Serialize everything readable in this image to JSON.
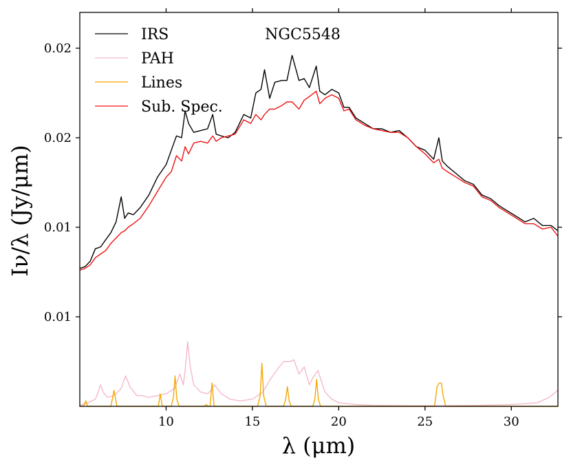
{
  "chart_data": {
    "type": "line",
    "title": "NGC5548",
    "xlabel": "λ (μm)",
    "ylabel": "Iν/λ (Jy/μm)",
    "xlim": [
      5.0,
      32.7
    ],
    "ylim": [
      0.0,
      0.022
    ],
    "xticks": [
      10,
      15,
      20,
      25,
      30
    ],
    "xtick_labels": [
      "10",
      "15",
      "20",
      "25",
      "30"
    ],
    "yticks": [
      0.005,
      0.01,
      0.015,
      0.02
    ],
    "ytick_labels": [
      "0.01",
      "0.01",
      "0.02",
      "0.02"
    ],
    "legend_position": "top-left",
    "series": [
      {
        "name": "IRS",
        "color": "#000000",
        "x": [
          5.0,
          5.3,
          5.6,
          5.9,
          6.2,
          6.5,
          6.8,
          7.1,
          7.4,
          7.6,
          7.8,
          8.1,
          8.5,
          9.0,
          9.5,
          10.0,
          10.3,
          10.6,
          10.9,
          11.1,
          11.3,
          11.6,
          12.0,
          12.4,
          12.7,
          12.9,
          13.2,
          13.6,
          14.0,
          14.5,
          14.9,
          15.2,
          15.5,
          15.7,
          16.0,
          16.3,
          16.7,
          17.0,
          17.3,
          17.7,
          18.0,
          18.3,
          18.7,
          18.9,
          19.2,
          19.6,
          20.0,
          20.3,
          20.6,
          21.0,
          21.5,
          22.0,
          22.5,
          23.0,
          23.5,
          24.0,
          24.5,
          25.0,
          25.5,
          25.8,
          26.0,
          26.3,
          26.8,
          27.3,
          27.8,
          28.3,
          28.8,
          29.3,
          29.8,
          30.3,
          30.8,
          31.3,
          31.8,
          32.3,
          32.7
        ],
        "values": [
          0.0077,
          0.0078,
          0.0081,
          0.0088,
          0.0089,
          0.0093,
          0.0097,
          0.0103,
          0.0117,
          0.0105,
          0.0108,
          0.0107,
          0.0111,
          0.0118,
          0.0128,
          0.0135,
          0.0143,
          0.0151,
          0.015,
          0.0165,
          0.0158,
          0.0153,
          0.0154,
          0.0155,
          0.0163,
          0.0152,
          0.0151,
          0.015,
          0.0153,
          0.0163,
          0.0161,
          0.0175,
          0.0177,
          0.0188,
          0.0172,
          0.0181,
          0.0182,
          0.0182,
          0.0196,
          0.0182,
          0.0183,
          0.0178,
          0.019,
          0.0176,
          0.0174,
          0.0177,
          0.0175,
          0.0167,
          0.0167,
          0.0161,
          0.0158,
          0.0155,
          0.0155,
          0.0153,
          0.0154,
          0.015,
          0.0145,
          0.0143,
          0.0138,
          0.015,
          0.0137,
          0.0134,
          0.013,
          0.0126,
          0.0124,
          0.0118,
          0.0116,
          0.0112,
          0.0109,
          0.0106,
          0.0103,
          0.0105,
          0.0101,
          0.0101,
          0.0098
        ]
      },
      {
        "name": "PAH",
        "color": "#f4b8c8",
        "x": [
          5.0,
          5.5,
          5.9,
          6.1,
          6.2,
          6.35,
          6.6,
          7.0,
          7.4,
          7.65,
          7.9,
          8.3,
          8.6,
          9.0,
          9.5,
          10.0,
          10.5,
          10.8,
          11.0,
          11.1,
          11.25,
          11.4,
          11.6,
          12.0,
          12.4,
          12.6,
          12.8,
          13.2,
          13.7,
          14.3,
          15.0,
          15.6,
          16.1,
          16.4,
          16.8,
          17.2,
          17.4,
          17.7,
          18.0,
          18.3,
          18.5,
          18.8,
          19.2,
          19.6,
          20.0,
          21.0,
          22.0,
          24.0,
          26.0,
          28.0,
          30.0,
          31.5,
          32.2,
          32.7
        ],
        "values": [
          5e-05,
          0.0002,
          0.0004,
          0.0009,
          0.0012,
          0.0008,
          0.0005,
          0.0006,
          0.001,
          0.0017,
          0.0011,
          0.0006,
          0.0006,
          0.0005,
          0.0006,
          0.0007,
          0.001,
          0.0018,
          0.0012,
          0.002,
          0.0036,
          0.0022,
          0.0012,
          0.0008,
          0.0007,
          0.0009,
          0.0012,
          0.0007,
          0.0004,
          0.0003,
          0.0004,
          0.0008,
          0.0016,
          0.002,
          0.0025,
          0.0025,
          0.0026,
          0.0018,
          0.0022,
          0.0012,
          0.0016,
          0.002,
          0.0008,
          0.0004,
          0.0002,
          0.0001,
          5e-05,
          3e-05,
          3e-05,
          5e-05,
          0.0001,
          0.0002,
          0.0005,
          0.0009
        ]
      },
      {
        "name": "Lines",
        "color": "#f5a700",
        "x": [
          5.0,
          5.2,
          5.35,
          5.45,
          5.55,
          5.7,
          6.6,
          6.8,
          6.98,
          7.15,
          7.3,
          9.4,
          9.55,
          9.66,
          9.78,
          9.9,
          10.3,
          10.42,
          10.52,
          10.62,
          10.75,
          12.2,
          12.32,
          12.44,
          12.55,
          12.66,
          12.78,
          12.9,
          15.3,
          15.45,
          15.55,
          15.65,
          15.8,
          16.8,
          16.93,
          17.03,
          17.13,
          17.25,
          18.5,
          18.62,
          18.72,
          18.82,
          18.95,
          25.55,
          25.7,
          25.82,
          25.95,
          26.05,
          26.2,
          32.7
        ],
        "values": [
          0.0,
          0.0,
          0.0003,
          0.0,
          0.0,
          0.0,
          0.0,
          0.0,
          0.0009,
          0.0,
          0.0,
          0.0,
          0.0,
          0.0007,
          0.0,
          0.0,
          0.0,
          0.0005,
          0.0017,
          0.0004,
          0.0,
          0.0,
          0.0001,
          0.0,
          0.0,
          0.0013,
          0.0,
          0.0,
          0.0,
          0.0006,
          0.0024,
          0.0006,
          0.0,
          0.0,
          0.0004,
          0.0011,
          0.0003,
          0.0,
          0.0,
          0.0004,
          0.0015,
          0.0004,
          0.0,
          0.0,
          0.0011,
          0.0013,
          0.0013,
          0.0006,
          0.0,
          0.0
        ]
      },
      {
        "name": "Sub. Spec.",
        "color": "#ee1111",
        "x": [
          5.0,
          5.3,
          5.6,
          5.9,
          6.2,
          6.5,
          6.8,
          7.1,
          7.4,
          7.6,
          7.8,
          8.1,
          8.5,
          9.0,
          9.5,
          10.0,
          10.3,
          10.6,
          10.9,
          11.1,
          11.3,
          11.6,
          12.0,
          12.4,
          12.7,
          12.9,
          13.2,
          13.6,
          14.0,
          14.5,
          14.9,
          15.2,
          15.5,
          15.7,
          16.0,
          16.3,
          16.7,
          17.0,
          17.3,
          17.7,
          18.0,
          18.3,
          18.7,
          18.9,
          19.2,
          19.6,
          20.0,
          20.3,
          20.6,
          21.0,
          21.5,
          22.0,
          22.5,
          23.0,
          23.5,
          24.0,
          24.5,
          25.0,
          25.5,
          25.8,
          26.0,
          26.3,
          26.8,
          27.3,
          27.8,
          28.3,
          28.8,
          29.3,
          29.8,
          30.3,
          30.8,
          31.3,
          31.8,
          32.3,
          32.7
        ],
        "values": [
          0.0076,
          0.0077,
          0.0079,
          0.0083,
          0.0085,
          0.0087,
          0.0091,
          0.0094,
          0.0097,
          0.0098,
          0.01,
          0.0102,
          0.0105,
          0.0112,
          0.012,
          0.0128,
          0.0131,
          0.014,
          0.0137,
          0.0145,
          0.0141,
          0.0147,
          0.0148,
          0.0147,
          0.0151,
          0.0148,
          0.015,
          0.0151,
          0.0152,
          0.016,
          0.0158,
          0.0163,
          0.016,
          0.0163,
          0.0166,
          0.0166,
          0.0168,
          0.017,
          0.017,
          0.0166,
          0.0171,
          0.0173,
          0.0176,
          0.0169,
          0.0172,
          0.0174,
          0.0172,
          0.0165,
          0.0166,
          0.016,
          0.0157,
          0.0155,
          0.0154,
          0.0153,
          0.0153,
          0.015,
          0.0145,
          0.0141,
          0.0136,
          0.0138,
          0.0133,
          0.0131,
          0.0128,
          0.0125,
          0.0123,
          0.0117,
          0.0115,
          0.0111,
          0.0108,
          0.0105,
          0.0102,
          0.0102,
          0.0099,
          0.01,
          0.0095
        ]
      }
    ]
  }
}
